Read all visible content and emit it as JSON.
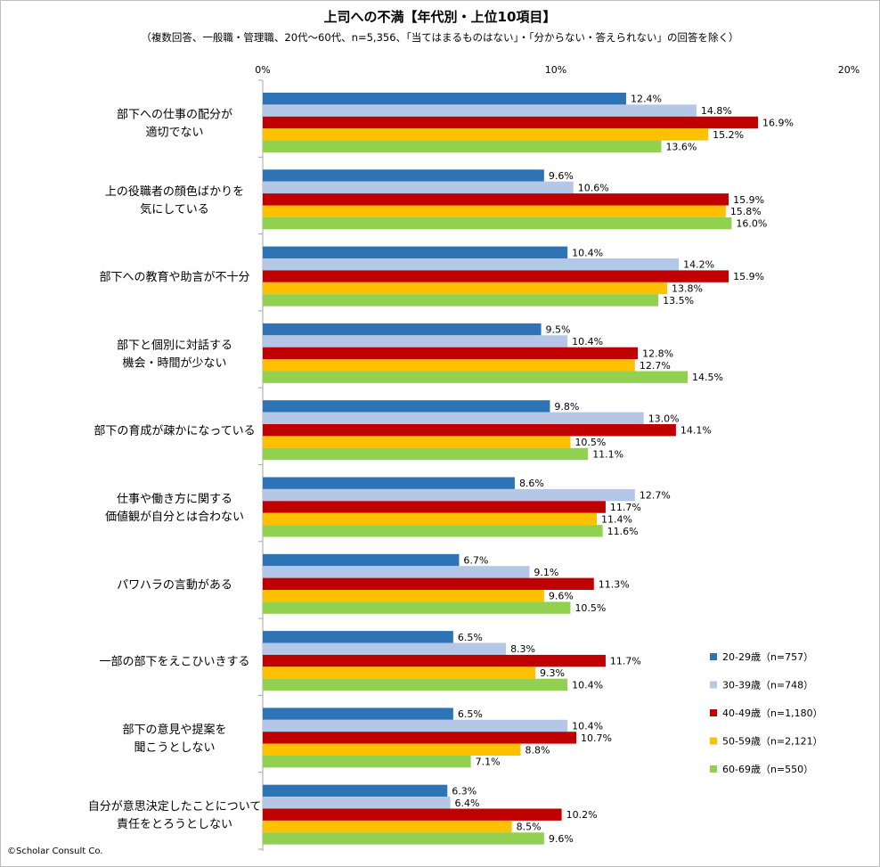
{
  "header": {
    "title": "上司への不満【年代別・上位10項目】",
    "subtitle": "（複数回答、一般職・管理職、20代～60代、n=5,356、「当てはまるものはない」・「分からない・答えられない」の回答を除く）"
  },
  "footer": {
    "copyright": "©Scholar Consult Co."
  },
  "chart_data": {
    "type": "bar",
    "orientation": "horizontal",
    "title": "上司への不満【年代別・上位10項目】",
    "xlim": [
      0,
      20
    ],
    "x_ticks": [
      "0%",
      "10%",
      "20%"
    ],
    "grid": false,
    "legend_position": "bottom-right",
    "categories": [
      [
        "部下への仕事の配分が",
        "適切でない"
      ],
      [
        "上の役職者の顔色ばかりを",
        "気にしている"
      ],
      [
        "部下への教育や助言が不十分"
      ],
      [
        "部下と個別に対話する",
        "機会・時間が少ない"
      ],
      [
        "部下の育成が疎かになっている"
      ],
      [
        "仕事や働き方に関する",
        "価値観が自分とは合わない"
      ],
      [
        "パワハラの言動がある"
      ],
      [
        "一部の部下をえこひいきする"
      ],
      [
        "部下の意見や提案を",
        "聞こうとしない"
      ],
      [
        "自分が意思決定したことについて",
        "責任をとろうとしない"
      ]
    ],
    "series": [
      {
        "name": "20-29歳（n=757）",
        "color": "#2e74b5",
        "values": [
          12.4,
          9.6,
          10.4,
          9.5,
          9.8,
          8.6,
          6.7,
          6.5,
          6.5,
          6.3
        ]
      },
      {
        "name": "30-39歳（n=748）",
        "color": "#b4c7e7",
        "values": [
          14.8,
          10.6,
          14.2,
          10.4,
          13.0,
          12.7,
          9.1,
          8.3,
          10.4,
          6.4
        ]
      },
      {
        "name": "40-49歳（n=1,180）",
        "color": "#c00000",
        "values": [
          16.9,
          15.9,
          15.9,
          12.8,
          14.1,
          11.7,
          11.3,
          11.7,
          10.7,
          10.2
        ]
      },
      {
        "name": "50-59歳（n=2,121）",
        "color": "#ffc000",
        "values": [
          15.2,
          15.8,
          13.8,
          12.7,
          10.5,
          11.4,
          9.6,
          9.3,
          8.8,
          8.5
        ]
      },
      {
        "name": "60-69歳（n=550）",
        "color": "#92d050",
        "values": [
          13.6,
          16.0,
          13.5,
          14.5,
          11.1,
          11.6,
          10.5,
          10.4,
          7.1,
          9.6
        ]
      }
    ]
  }
}
